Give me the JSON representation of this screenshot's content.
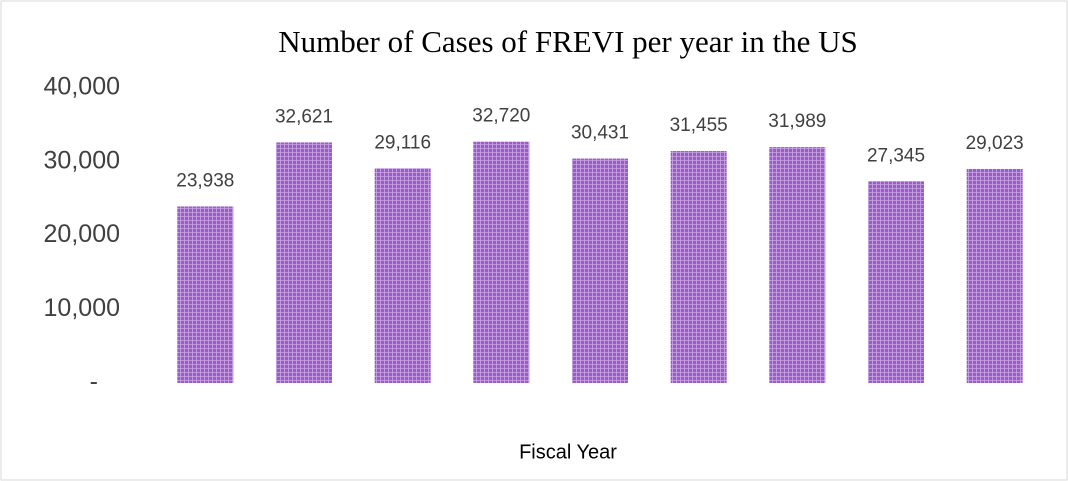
{
  "chart_data": {
    "type": "bar",
    "title": "Number of Cases of FREVI per year in the US",
    "x_label": "Fiscal Year",
    "categories": [
      null,
      null,
      null,
      null,
      null,
      null,
      null,
      null,
      null
    ],
    "values": [
      23938,
      32621,
      29116,
      32720,
      30431,
      31455,
      31989,
      27345,
      29023
    ],
    "value_labels": [
      "23,938",
      "32,621",
      "29,116",
      "32,720",
      "30,431",
      "31,455",
      "31,989",
      "27,345",
      "29,023"
    ],
    "color": "#9b5cc8",
    "ylim": [
      0,
      40000
    ],
    "yticks": [
      {
        "value": 0,
        "label": "-"
      },
      {
        "value": 10000,
        "label": "10,000"
      },
      {
        "value": 20000,
        "label": "20,000"
      },
      {
        "value": 30000,
        "label": "30,000"
      },
      {
        "value": 40000,
        "label": "40,000"
      }
    ],
    "grid": false
  }
}
